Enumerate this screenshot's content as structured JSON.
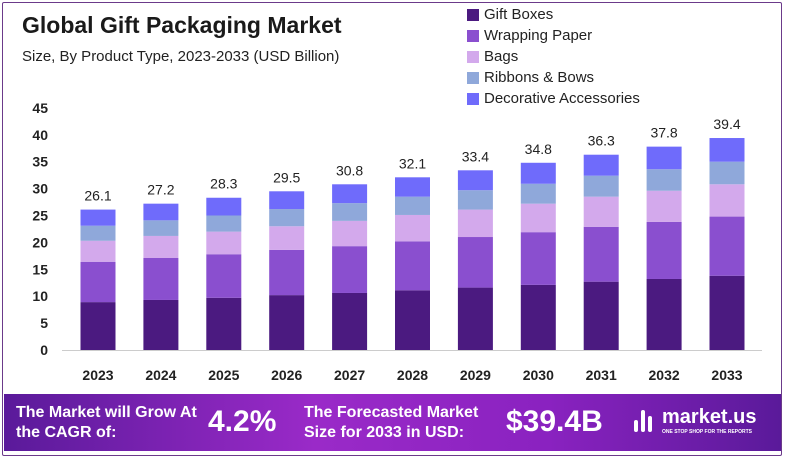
{
  "chart_data": {
    "type": "bar",
    "stacked": true,
    "title": "Global Gift Packaging Market",
    "subtitle": "Size, By Product Type, 2023-2033 (USD Billion)",
    "categories": [
      "2023",
      "2024",
      "2025",
      "2026",
      "2027",
      "2028",
      "2029",
      "2030",
      "2031",
      "2032",
      "2033"
    ],
    "totals": [
      "26.1",
      "27.2",
      "28.3",
      "29.5",
      "30.8",
      "32.1",
      "33.4",
      "34.8",
      "36.3",
      "37.8",
      "39.4"
    ],
    "series": [
      {
        "name": "Gift Boxes",
        "color": "#4b1a80",
        "values": [
          8.9,
          9.3,
          9.7,
          10.2,
          10.6,
          11.1,
          11.6,
          12.1,
          12.7,
          13.2,
          13.8
        ]
      },
      {
        "name": "Wrapping Paper",
        "color": "#8a4fcf",
        "values": [
          7.5,
          7.8,
          8.1,
          8.4,
          8.7,
          9.1,
          9.4,
          9.8,
          10.2,
          10.6,
          11.0
        ]
      },
      {
        "name": "Bags",
        "color": "#d3a9ec",
        "values": [
          3.9,
          4.1,
          4.2,
          4.4,
          4.7,
          4.9,
          5.1,
          5.3,
          5.6,
          5.8,
          6.0
        ]
      },
      {
        "name": "Ribbons & Bows",
        "color": "#8fa8da",
        "values": [
          2.8,
          2.9,
          3.0,
          3.2,
          3.3,
          3.4,
          3.6,
          3.7,
          3.9,
          4.0,
          4.2
        ]
      },
      {
        "name": "Decorative Accessories",
        "color": "#6f6bfb",
        "values": [
          3.0,
          3.1,
          3.3,
          3.3,
          3.5,
          3.6,
          3.7,
          3.9,
          3.9,
          4.2,
          4.4
        ]
      }
    ],
    "yticks": [
      "0",
      "5",
      "10",
      "15",
      "20",
      "25",
      "30",
      "35",
      "40",
      "45"
    ],
    "ylim": [
      0,
      45
    ],
    "xlabel": "",
    "ylabel": "",
    "legend": "top-right"
  },
  "banner": {
    "cagr_label": "The Market will Grow At the CAGR of:",
    "cagr_value": "4.2%",
    "forecast_label": "The Forecasted Market Size for 2033 in USD:",
    "forecast_value": "$39.4B",
    "brand": "market.us",
    "tagline": "ONE STOP SHOP FOR THE REPORTS"
  }
}
